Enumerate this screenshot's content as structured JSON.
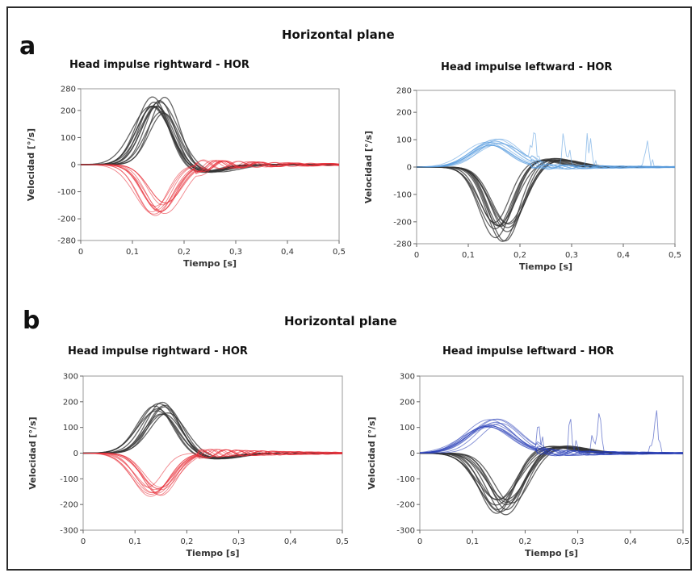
{
  "figure": {
    "panel_a": {
      "letter": "a",
      "title": "Horizontal plane"
    },
    "panel_b": {
      "letter": "b",
      "title": "Horizontal plane"
    }
  },
  "colors": {
    "head": "#333333",
    "eye_red": "#e8303a",
    "eye_blue_light": "#5b9ee0",
    "eye_blue_dark": "#2a3fb8"
  },
  "chart_data": [
    {
      "id": "a-right",
      "type": "line",
      "title": "Head impulse rightward - HOR",
      "xlabel": "Tiempo [s]",
      "ylabel": "Velocidad [°/s]",
      "xlim": [
        0,
        0.5
      ],
      "ylim": [
        -280,
        280
      ],
      "xticks": [
        "0",
        "0,1",
        "0,2",
        "0,3",
        "0,4",
        "0,5"
      ],
      "yticks": [
        "280",
        "200",
        "100",
        "0",
        "-100",
        "-200",
        "-280"
      ],
      "series": [
        {
          "role": "head",
          "color": "#333333",
          "peak": 230,
          "t_peak": 0.15,
          "width": 0.045,
          "count": 12
        },
        {
          "role": "eye",
          "color": "#e8303a",
          "peak": -170,
          "t_peak": 0.15,
          "width": 0.045,
          "count": 12
        }
      ]
    },
    {
      "id": "a-left",
      "type": "line",
      "title": "Head impulse leftward - HOR",
      "xlabel": "Tiempo [s]",
      "ylabel": "Velocidad [°/s]",
      "xlim": [
        0,
        0.5
      ],
      "ylim": [
        -280,
        280
      ],
      "xticks": [
        "0",
        "0,1",
        "0,2",
        "0,3",
        "0,4",
        "0,5"
      ],
      "yticks": [
        "280",
        "200",
        "100",
        "0",
        "-100",
        "-200",
        "-280"
      ],
      "series": [
        {
          "role": "head",
          "color": "#333333",
          "peak": -245,
          "t_peak": 0.165,
          "width": 0.045,
          "count": 12
        },
        {
          "role": "eye",
          "color": "#5b9ee0",
          "peak": 95,
          "t_peak": 0.15,
          "width": 0.06,
          "count": 12,
          "spikes": true
        }
      ]
    },
    {
      "id": "b-right",
      "type": "line",
      "title": "Head impulse rightward - HOR",
      "xlabel": "Tiempo [s]",
      "ylabel": "Velocidad [°/s]",
      "xlim": [
        0,
        0.5
      ],
      "ylim": [
        -300,
        300
      ],
      "xticks": [
        "0",
        "0,1",
        "0,2",
        "0,3",
        "0,4",
        "0,5"
      ],
      "yticks": [
        "300",
        "200",
        "100",
        "0",
        "-100",
        "-200",
        "-300"
      ],
      "series": [
        {
          "role": "head",
          "color": "#333333",
          "peak": 185,
          "t_peak": 0.15,
          "width": 0.05,
          "count": 10
        },
        {
          "role": "eye",
          "color": "#e8303a",
          "peak": -155,
          "t_peak": 0.14,
          "width": 0.045,
          "count": 12
        }
      ]
    },
    {
      "id": "b-left",
      "type": "line",
      "title": "Head impulse leftward - HOR",
      "xlabel": "Tiempo [s]",
      "ylabel": "Velocidad [°/s]",
      "xlim": [
        0,
        0.5
      ],
      "ylim": [
        -300,
        300
      ],
      "xticks": [
        "0",
        "0,1",
        "0,2",
        "0,3",
        "0,4",
        "0,5"
      ],
      "yticks": [
        "300",
        "200",
        "100",
        "0",
        "-100",
        "-200",
        "-300"
      ],
      "series": [
        {
          "role": "head",
          "color": "#333333",
          "peak": -215,
          "t_peak": 0.16,
          "width": 0.05,
          "count": 12
        },
        {
          "role": "eye",
          "color": "#2a3fb8",
          "peak": 120,
          "t_peak": 0.14,
          "width": 0.06,
          "count": 12,
          "spikes": true
        }
      ]
    }
  ]
}
